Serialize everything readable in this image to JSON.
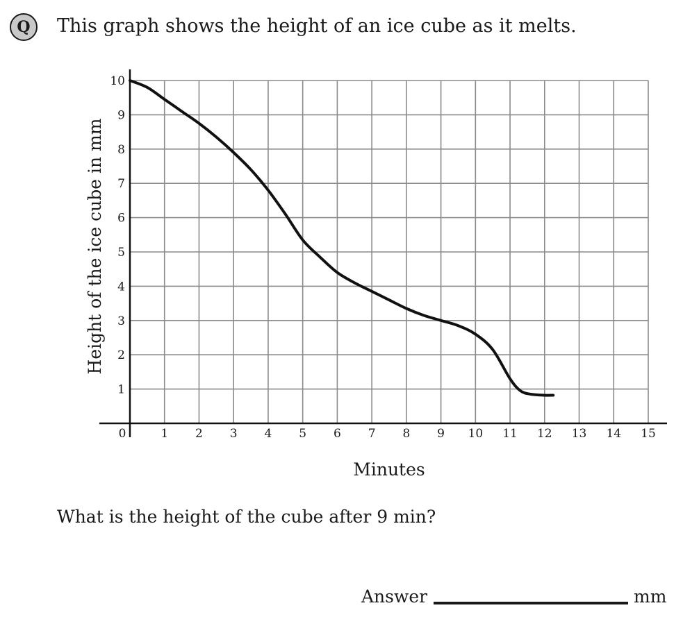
{
  "badge": "Q",
  "question": "This graph shows the height of an ice cube as it melts.",
  "sub_question": "What is the height of the cube after 9 min?",
  "answer": {
    "label": "Answer",
    "unit": "mm"
  },
  "chart_data": {
    "type": "line",
    "title": "",
    "xlabel": "Minutes",
    "ylabel": "Height of the ice cube in mm",
    "xlim": [
      0,
      15
    ],
    "ylim": [
      0,
      10
    ],
    "xticks": [
      1,
      2,
      3,
      4,
      5,
      6,
      7,
      8,
      9,
      10,
      11,
      12,
      13,
      14,
      15
    ],
    "yticks": [
      1,
      2,
      3,
      4,
      5,
      6,
      7,
      8,
      9,
      10
    ],
    "origin_label": "0",
    "grid": true,
    "series": [
      {
        "x": [
          0,
          0.5,
          1,
          1.5,
          2,
          2.5,
          3,
          3.5,
          4,
          4.5,
          5,
          5.5,
          6,
          6.5,
          7,
          7.5,
          8,
          8.5,
          9,
          9.5,
          10,
          10.5,
          11,
          11.3,
          11.6,
          12,
          12.25
        ],
        "y": [
          10,
          9.8,
          9.45,
          9.1,
          8.75,
          8.35,
          7.9,
          7.4,
          6.8,
          6.1,
          5.35,
          4.85,
          4.4,
          4.1,
          3.85,
          3.6,
          3.35,
          3.15,
          3.0,
          2.85,
          2.6,
          2.15,
          1.3,
          0.95,
          0.85,
          0.82,
          0.82
        ]
      }
    ]
  }
}
